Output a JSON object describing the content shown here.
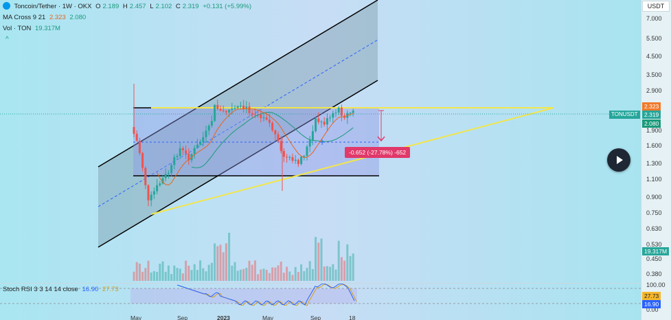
{
  "legend": {
    "symbol": "Toncoin/Tether · 1W · OKX",
    "open_label": "O",
    "open": "2.189",
    "high_label": "H",
    "high": "2.457",
    "low_label": "L",
    "low": "2.102",
    "close_label": "C",
    "close": "2.319",
    "change": "+0.131 (+5.99%)",
    "ma_name": "MA Cross 9 21",
    "ma_fast": "2.323",
    "ma_slow": "2.080",
    "vol_name": "Vol · TON",
    "vol_value": "19.317M",
    "collapse_glyph": "^"
  },
  "rsi": {
    "name": "Stoch RSI 3 3 14 14 close",
    "k": "16.90",
    "d": "27.73"
  },
  "price_axis": {
    "currency": "USDT",
    "ticks": [
      "7.000",
      "5.500",
      "4.500",
      "3.500",
      "2.900",
      "1.900",
      "1.600",
      "1.300",
      "1.100",
      "0.900",
      "0.750",
      "0.630",
      "0.530",
      "0.450",
      "0.380"
    ],
    "rsi_ticks": [
      "100.00",
      "0.00"
    ]
  },
  "badges": {
    "ma_fast": "2.323",
    "symbol_tag": "TONUSDT",
    "last_price": "2.319",
    "ma_slow": "2.080",
    "volume": "19.317M",
    "rsi_d": "27.73",
    "rsi_k": "16.90"
  },
  "measure_label": "-0.652 (-27.78%) -652",
  "time_axis": [
    "May",
    "Sep",
    "2023",
    "May",
    "Sep",
    "18"
  ],
  "colors": {
    "up": "#26a69a",
    "down": "#ef5350",
    "channel": "#000000",
    "channel_fill": "#5f7f8a",
    "range_fill": "#8d94e6",
    "trendline": "#f3e64a",
    "measure": "#e0396a",
    "ma_fast": "#e8641c",
    "ma_slow": "#1a9a7a"
  }
}
